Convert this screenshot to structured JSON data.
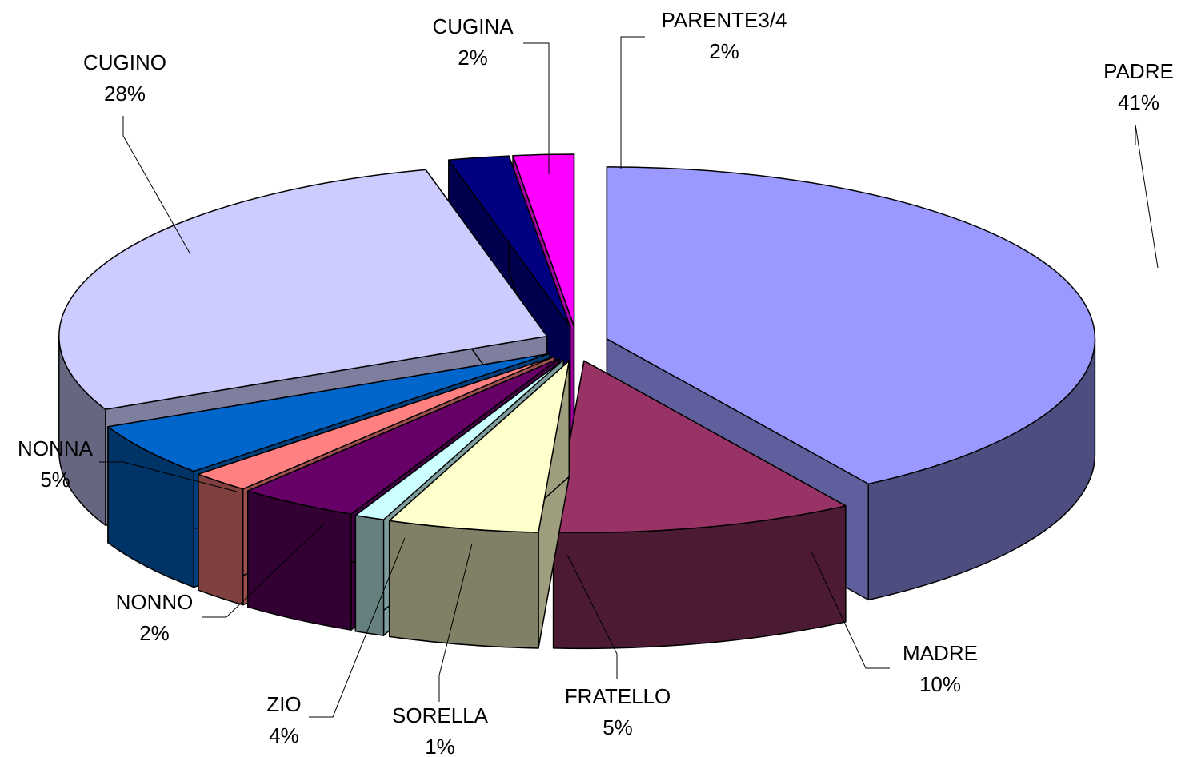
{
  "chart_data": {
    "type": "pie",
    "style": "3d-exploded",
    "title": "",
    "slices": [
      {
        "label": "PADRE",
        "value": 41,
        "value_label": "41%",
        "color": "#9999FF"
      },
      {
        "label": "MADRE",
        "value": 10,
        "value_label": "10%",
        "color": "#993366"
      },
      {
        "label": "FRATELLO",
        "value": 5,
        "value_label": "5%",
        "color": "#FFFFCC"
      },
      {
        "label": "SORELLA",
        "value": 1,
        "value_label": "1%",
        "color": "#CCFFFF"
      },
      {
        "label": "ZIO",
        "value": 4,
        "value_label": "4%",
        "color": "#660066"
      },
      {
        "label": "NONNO",
        "value": 2,
        "value_label": "2%",
        "color": "#FF8080"
      },
      {
        "label": "NONNA",
        "value": 5,
        "value_label": "5%",
        "color": "#0066CC"
      },
      {
        "label": "CUGINO",
        "value": 28,
        "value_label": "28%",
        "color": "#CCCCFF"
      },
      {
        "label": "CUGINA",
        "value": 2,
        "value_label": "2%",
        "color": "#000080"
      },
      {
        "label": "PARENTE3/4",
        "value": 2,
        "value_label": "2%",
        "color": "#FF00FF"
      }
    ],
    "legend": "none",
    "data_labels": "outside-with-leader-lines"
  }
}
